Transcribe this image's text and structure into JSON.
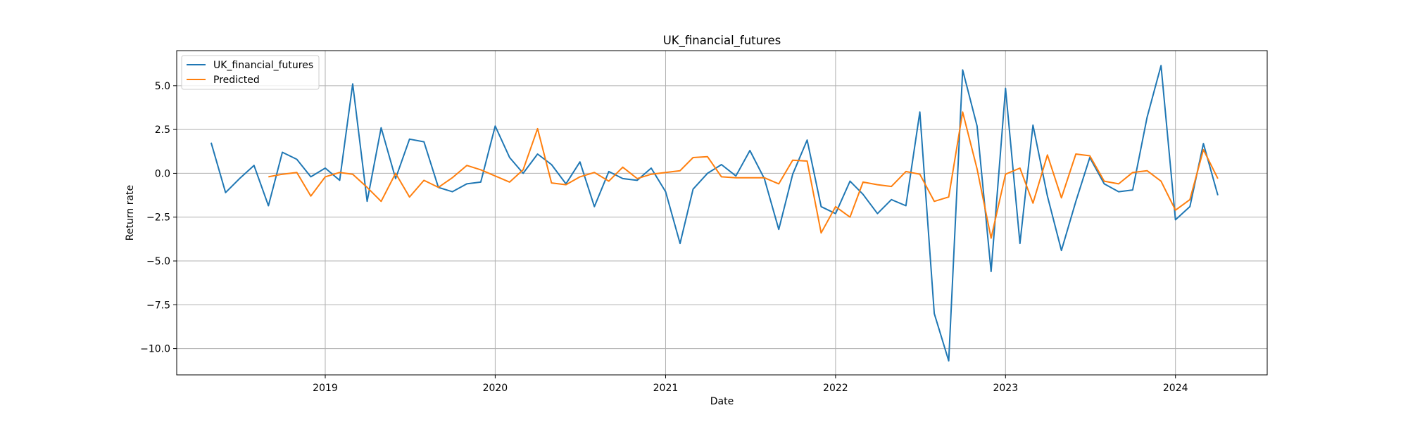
{
  "chart_data": {
    "type": "line",
    "title": "UK_financial_futures",
    "xlabel": "Date",
    "ylabel": "Return rate",
    "grid": true,
    "legend_position": "top-left",
    "xlim": [
      "2018-02-16",
      "2024-07-16"
    ],
    "ylim": [
      -11.5,
      7.0
    ],
    "x_ticks": [
      "2019-01-01",
      "2020-01-01",
      "2021-01-01",
      "2022-01-01",
      "2023-01-01",
      "2024-01-01"
    ],
    "x_tick_labels": [
      "2019",
      "2020",
      "2021",
      "2022",
      "2023",
      "2024"
    ],
    "y_ticks": [
      5.0,
      2.5,
      0.0,
      -2.5,
      -5.0,
      -7.5,
      -10.0
    ],
    "y_tick_labels": [
      "5.0",
      "2.5",
      "0.0",
      "−2.5",
      "−5.0",
      "−7.5",
      "−10.0"
    ],
    "colors": {
      "actual": "#1f77b4",
      "predicted": "#ff7f0e"
    },
    "series": [
      {
        "name": "UK_financial_futures",
        "x": [
          "2018-05-01",
          "2018-06-01",
          "2018-07-01",
          "2018-08-01",
          "2018-09-01",
          "2018-10-01",
          "2018-11-01",
          "2018-12-01",
          "2019-01-01",
          "2019-02-01",
          "2019-03-01",
          "2019-04-01",
          "2019-05-01",
          "2019-06-01",
          "2019-07-01",
          "2019-08-01",
          "2019-09-01",
          "2019-10-01",
          "2019-11-01",
          "2019-12-01",
          "2020-01-01",
          "2020-02-01",
          "2020-03-01",
          "2020-04-01",
          "2020-05-01",
          "2020-06-01",
          "2020-07-01",
          "2020-08-01",
          "2020-09-01",
          "2020-10-01",
          "2020-11-01",
          "2020-12-01",
          "2021-01-01",
          "2021-02-01",
          "2021-03-01",
          "2021-04-01",
          "2021-05-01",
          "2021-06-01",
          "2021-07-01",
          "2021-08-01",
          "2021-09-01",
          "2021-10-01",
          "2021-11-01",
          "2021-12-01",
          "2022-01-01",
          "2022-02-01",
          "2022-03-01",
          "2022-04-01",
          "2022-05-01",
          "2022-06-01",
          "2022-07-01",
          "2022-08-01",
          "2022-09-01",
          "2022-10-01",
          "2022-11-01",
          "2022-12-01",
          "2023-01-01",
          "2023-02-01",
          "2023-03-01",
          "2023-04-01",
          "2023-05-01",
          "2023-06-01",
          "2023-07-01",
          "2023-08-01",
          "2023-09-01",
          "2023-10-01",
          "2023-11-01",
          "2023-12-01",
          "2024-01-01",
          "2024-02-01",
          "2024-03-01",
          "2024-04-01"
        ],
        "values": [
          1.75,
          -1.1,
          -0.3,
          0.45,
          -1.85,
          1.2,
          0.8,
          -0.2,
          0.3,
          -0.4,
          5.1,
          -1.6,
          2.6,
          -0.3,
          1.95,
          1.8,
          -0.8,
          -1.05,
          -0.6,
          -0.5,
          2.7,
          0.9,
          0.0,
          1.1,
          0.5,
          -0.6,
          0.65,
          -1.9,
          0.1,
          -0.3,
          -0.4,
          0.3,
          -1.05,
          -4.0,
          -0.9,
          0.0,
          0.5,
          -0.15,
          1.3,
          -0.3,
          -3.2,
          -0.05,
          1.9,
          -1.9,
          -2.3,
          -0.45,
          -1.2,
          -2.3,
          -1.5,
          -1.85,
          3.5,
          -8.0,
          -10.7,
          5.9,
          2.7,
          -5.6,
          4.85,
          -4.0,
          2.75,
          -1.3,
          -4.4,
          -1.6,
          0.9,
          -0.6,
          -1.05,
          -0.95,
          3.2,
          6.15,
          -2.65,
          -1.9,
          1.7,
          -1.25
        ]
      },
      {
        "name": "Predicted",
        "x": [
          "2018-09-01",
          "2018-10-01",
          "2018-11-01",
          "2018-12-01",
          "2019-01-01",
          "2019-02-01",
          "2019-03-01",
          "2019-04-01",
          "2019-05-01",
          "2019-06-01",
          "2019-07-01",
          "2019-08-01",
          "2019-09-01",
          "2019-10-01",
          "2019-11-01",
          "2019-12-01",
          "2020-01-01",
          "2020-02-01",
          "2020-03-01",
          "2020-04-01",
          "2020-05-01",
          "2020-06-01",
          "2020-07-01",
          "2020-08-01",
          "2020-09-01",
          "2020-10-01",
          "2020-11-01",
          "2020-12-01",
          "2021-01-01",
          "2021-02-01",
          "2021-03-01",
          "2021-04-01",
          "2021-05-01",
          "2021-06-01",
          "2021-07-01",
          "2021-08-01",
          "2021-09-01",
          "2021-10-01",
          "2021-11-01",
          "2021-12-01",
          "2022-01-01",
          "2022-02-01",
          "2022-03-01",
          "2022-04-01",
          "2022-05-01",
          "2022-06-01",
          "2022-07-01",
          "2022-08-01",
          "2022-09-01",
          "2022-10-01",
          "2022-11-01",
          "2022-12-01",
          "2023-01-01",
          "2023-02-01",
          "2023-03-01",
          "2023-04-01",
          "2023-05-01",
          "2023-06-01",
          "2023-07-01",
          "2023-08-01",
          "2023-09-01",
          "2023-10-01",
          "2023-11-01",
          "2023-12-01",
          "2024-01-01",
          "2024-02-01",
          "2024-03-01",
          "2024-04-01"
        ],
        "values": [
          -0.2,
          -0.05,
          0.05,
          -1.3,
          -0.2,
          0.05,
          -0.05,
          -0.8,
          -1.6,
          0.0,
          -1.35,
          -0.4,
          -0.8,
          -0.25,
          0.45,
          0.2,
          -0.15,
          -0.5,
          0.2,
          2.55,
          -0.55,
          -0.65,
          -0.2,
          0.05,
          -0.45,
          0.35,
          -0.3,
          -0.05,
          0.05,
          0.15,
          0.9,
          0.95,
          -0.2,
          -0.25,
          -0.25,
          -0.25,
          -0.6,
          0.75,
          0.7,
          -3.4,
          -1.9,
          -2.5,
          -0.5,
          -0.65,
          -0.75,
          0.1,
          -0.05,
          -1.6,
          -1.35,
          3.5,
          0.25,
          -3.7,
          -0.05,
          0.3,
          -1.7,
          1.05,
          -1.4,
          1.1,
          1.0,
          -0.45,
          -0.6,
          0.05,
          0.15,
          -0.45,
          -2.1,
          -1.5,
          1.35,
          -0.3
        ]
      }
    ]
  }
}
